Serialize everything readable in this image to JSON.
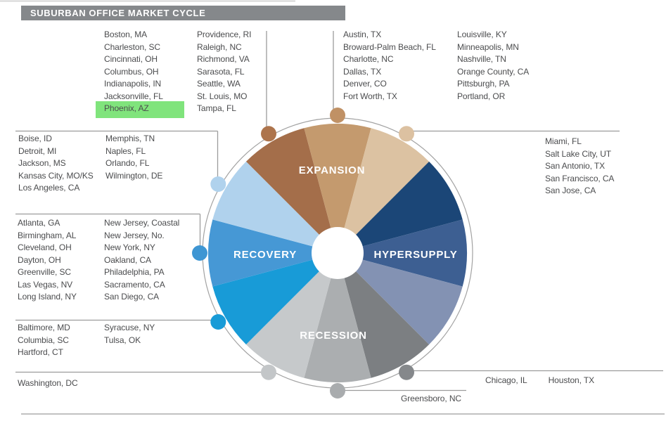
{
  "title": "SUBURBAN OFFICE MARKET CYCLE",
  "highlight": {
    "city": "Phoenix, AZ",
    "color": "#80e47c"
  },
  "wheel": {
    "labels": {
      "expansion": "EXPANSION",
      "hypersupply": "HYPERSUPPLY",
      "recession": "RECESSION",
      "recovery": "RECOVERY"
    },
    "segments": [
      {
        "hour": 11,
        "phase": "expansion",
        "color": "#a46e4a"
      },
      {
        "hour": 12,
        "phase": "expansion",
        "color": "#c49a6e"
      },
      {
        "hour": 1,
        "phase": "expansion",
        "color": "#dcc2a2"
      },
      {
        "hour": 2,
        "phase": "hypersupply",
        "color": "#1b4677"
      },
      {
        "hour": 3,
        "phase": "hypersupply",
        "color": "#3d5f92"
      },
      {
        "hour": 4,
        "phase": "hypersupply",
        "color": "#8392b3"
      },
      {
        "hour": 5,
        "phase": "recession",
        "color": "#7c7f82"
      },
      {
        "hour": 6,
        "phase": "recession",
        "color": "#abaeb0"
      },
      {
        "hour": 7,
        "phase": "recession",
        "color": "#c6c9cb"
      },
      {
        "hour": 8,
        "phase": "recovery",
        "color": "#189bd7"
      },
      {
        "hour": 9,
        "phase": "recovery",
        "color": "#4698d5"
      },
      {
        "hour": 10,
        "phase": "recovery",
        "color": "#b0d2ed"
      }
    ],
    "dots": [
      {
        "hour": 11,
        "color": "#ad744c"
      },
      {
        "hour": 12,
        "color": "#c09165"
      },
      {
        "hour": 1,
        "color": "#dcc1a1"
      },
      {
        "hour": 10,
        "color": "#b0d2ed"
      },
      {
        "hour": 9,
        "color": "#3e96d3"
      },
      {
        "hour": 8,
        "color": "#189bd7"
      },
      {
        "hour": 7,
        "color": "#c3c6c8"
      },
      {
        "hour": 6,
        "color": "#a9acae"
      },
      {
        "hour": 5,
        "color": "#85888b"
      }
    ]
  },
  "city_groups": {
    "pos11": {
      "position": "11 o'clock",
      "columns": [
        [
          "Boston, MA",
          "Charleston, SC",
          "Cincinnati, OH",
          "Columbus, OH",
          "Indianapolis, IN",
          "Jacksonville, FL",
          "Phoenix, AZ"
        ],
        [
          "Providence, RI",
          "Raleigh, NC",
          "Richmond, VA",
          "Sarasota, FL",
          "Seattle, WA",
          "St. Louis, MO",
          "Tampa, FL"
        ]
      ]
    },
    "pos12": {
      "position": "12 o'clock",
      "columns": [
        [
          "Austin, TX",
          "Broward-Palm Beach, FL",
          "Charlotte, NC",
          "Dallas, TX",
          "Denver, CO",
          "Fort Worth, TX"
        ],
        [
          "Louisville, KY",
          "Minneapolis, MN",
          "Nashville, TN",
          "Orange County, CA",
          "Pittsburgh, PA",
          "Portland, OR"
        ]
      ]
    },
    "pos1": {
      "position": "1 o'clock",
      "columns": [
        [
          "Miami, FL",
          "Salt Lake City, UT",
          "San Antonio, TX",
          "San Francisco, CA",
          "San Jose, CA"
        ]
      ]
    },
    "pos10": {
      "position": "10 o'clock",
      "columns": [
        [
          "Boise, ID",
          "Detroit, MI",
          "Jackson, MS",
          "Kansas City, MO/KS",
          "Los Angeles, CA"
        ],
        [
          "Memphis, TN",
          "Naples, FL",
          "Orlando, FL",
          "Wilmington, DE"
        ]
      ]
    },
    "pos9": {
      "position": "9 o'clock",
      "columns": [
        [
          "Atlanta, GA",
          "Birmingham, AL",
          "Cleveland, OH",
          "Dayton, OH",
          "Greenville, SC",
          "Las Vegas, NV",
          "Long Island, NY"
        ],
        [
          "New Jersey, Coastal",
          "New Jersey, No.",
          "New York, NY",
          "Oakland, CA",
          "Philadelphia, PA",
          "Sacramento, CA",
          "San Diego, CA"
        ]
      ]
    },
    "pos8": {
      "position": "8 o'clock",
      "columns": [
        [
          "Baltimore, MD",
          "Columbia, SC",
          "Hartford, CT"
        ],
        [
          "Syracuse, NY",
          "Tulsa, OK"
        ]
      ]
    },
    "pos7": {
      "position": "7 o'clock",
      "columns": [
        [
          "Washington, DC"
        ]
      ]
    },
    "pos6": {
      "position": "6 o'clock",
      "columns": [
        [
          "Greensboro, NC"
        ]
      ]
    },
    "pos5": {
      "position": "5 o'clock",
      "columns": [
        [
          "Chicago, IL",
          "Houston, TX"
        ]
      ]
    }
  }
}
